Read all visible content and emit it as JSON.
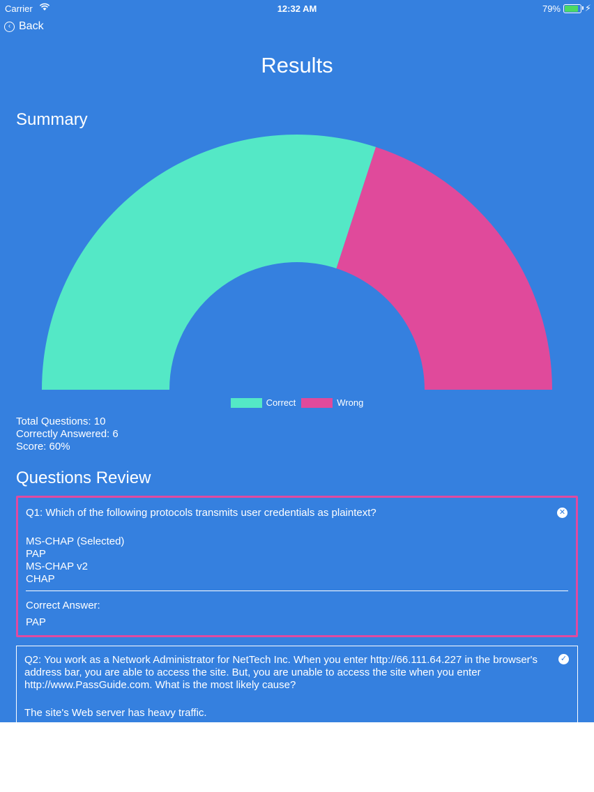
{
  "status_bar": {
    "carrier": "Carrier",
    "time": "12:32 AM",
    "battery": "79%",
    "battery_level": 0.79
  },
  "nav": {
    "back_label": "Back"
  },
  "page": {
    "title": "Results"
  },
  "summary": {
    "heading": "Summary",
    "total_questions": "Total Questions: 10",
    "correctly_answered": "Correctly Answered: 6",
    "score": "Score: 60%"
  },
  "chart_data": {
    "type": "pie",
    "subtype": "half-doughnut",
    "labels": [
      "Correct",
      "Wrong"
    ],
    "values": [
      6,
      4
    ],
    "colors": [
      "#54e8c6",
      "#e04a9b"
    ],
    "legend": "bottom"
  },
  "review": {
    "heading": "Questions Review",
    "questions": [
      {
        "text": "Q1: Which of the following protocols transmits user credentials as plaintext?",
        "status_icon": "x-circle-icon",
        "options": [
          "MS-CHAP (Selected)",
          "PAP",
          "MS-CHAP v2",
          "CHAP"
        ],
        "correct_label": "Correct Answer:",
        "correct_answer": "PAP"
      },
      {
        "text": "Q2: You work as a Network Administrator for NetTech Inc. When you enter http://66.111.64.227 in the browser's address bar, you are able to access the site. But, you are unable to access the site when you enter http://www.PassGuide.com. What is the most likely cause?",
        "status_icon": "check-circle-icon",
        "options": [
          "The site's Web server has heavy traffic."
        ]
      }
    ]
  },
  "colors": {
    "background": "#3580df",
    "correct": "#54e8c6",
    "wrong": "#e04a9b",
    "wrong_border": "#e04aa0"
  }
}
